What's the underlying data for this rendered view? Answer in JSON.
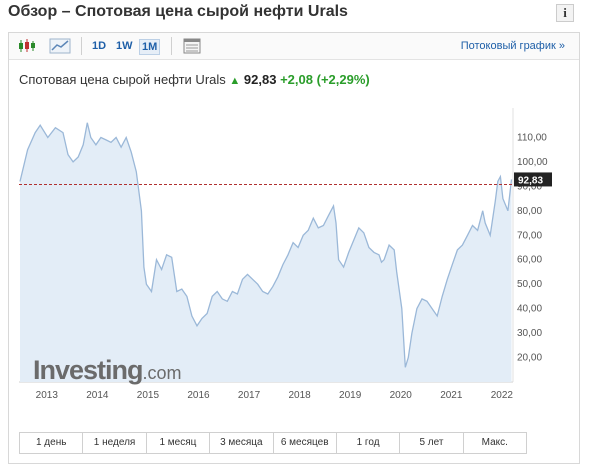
{
  "title": "Обзор – Спотовая цена сырой нефти Urals",
  "info_icon": "i",
  "toolbar": {
    "timeframes": [
      "1D",
      "1W",
      "1M"
    ],
    "active_timeframe": "1M",
    "stream_link": "Потоковый график",
    "stream_arrow": "»"
  },
  "quote": {
    "name": "Спотовая цена сырой нефти Urals",
    "price": "92,83",
    "change": "+2,08",
    "change_pct": "(+2,29%)"
  },
  "logo": {
    "main": "Investing",
    "suffix": ".com"
  },
  "periods": [
    "1 день",
    "1 неделя",
    "1 месяц",
    "3 месяца",
    "6 месяцев",
    "1 год",
    "5 лет",
    "Макс."
  ],
  "colors": {
    "line": "#9bb8d8",
    "fill": "#e3edf7",
    "price_tag": "#222222",
    "ref_line": "#b03030"
  },
  "chart_data": {
    "type": "area",
    "x_label_years": [
      "2013",
      "2014",
      "2015",
      "2016",
      "2017",
      "2018",
      "2019",
      "2020",
      "2021",
      "2022"
    ],
    "y_ticks": [
      "110,00",
      "100,00",
      "90,00",
      "80,00",
      "70,00",
      "60,00",
      "50,00",
      "40,00",
      "30,00",
      "20,00"
    ],
    "ylim": [
      10,
      120
    ],
    "last_price_label": "92,83",
    "reference_value": 90.75,
    "series": [
      {
        "values": [
          [
            2012.6,
            92
          ],
          [
            2012.75,
            105
          ],
          [
            2012.9,
            112
          ],
          [
            2013.0,
            115
          ],
          [
            2013.15,
            110
          ],
          [
            2013.3,
            114
          ],
          [
            2013.45,
            112
          ],
          [
            2013.55,
            103
          ],
          [
            2013.65,
            100
          ],
          [
            2013.75,
            102
          ],
          [
            2013.85,
            107
          ],
          [
            2013.93,
            116
          ],
          [
            2014.0,
            110
          ],
          [
            2014.1,
            107
          ],
          [
            2014.2,
            110
          ],
          [
            2014.3,
            109
          ],
          [
            2014.4,
            108
          ],
          [
            2014.5,
            110
          ],
          [
            2014.6,
            106
          ],
          [
            2014.7,
            110
          ],
          [
            2014.8,
            104
          ],
          [
            2014.9,
            96
          ],
          [
            2015.0,
            80
          ],
          [
            2015.05,
            57
          ],
          [
            2015.1,
            50
          ],
          [
            2015.2,
            47
          ],
          [
            2015.3,
            60
          ],
          [
            2015.4,
            56
          ],
          [
            2015.5,
            62
          ],
          [
            2015.6,
            61
          ],
          [
            2015.7,
            47
          ],
          [
            2015.8,
            48
          ],
          [
            2015.9,
            45
          ],
          [
            2016.0,
            37
          ],
          [
            2016.1,
            33
          ],
          [
            2016.2,
            36
          ],
          [
            2016.3,
            38
          ],
          [
            2016.4,
            45
          ],
          [
            2016.5,
            47
          ],
          [
            2016.6,
            44
          ],
          [
            2016.7,
            43
          ],
          [
            2016.8,
            47
          ],
          [
            2016.9,
            46
          ],
          [
            2017.0,
            52
          ],
          [
            2017.1,
            54
          ],
          [
            2017.2,
            52
          ],
          [
            2017.3,
            50
          ],
          [
            2017.4,
            47
          ],
          [
            2017.5,
            46
          ],
          [
            2017.6,
            49
          ],
          [
            2017.7,
            53
          ],
          [
            2017.8,
            58
          ],
          [
            2017.9,
            62
          ],
          [
            2018.0,
            67
          ],
          [
            2018.1,
            65
          ],
          [
            2018.2,
            70
          ],
          [
            2018.3,
            72
          ],
          [
            2018.4,
            77
          ],
          [
            2018.5,
            73
          ],
          [
            2018.6,
            74
          ],
          [
            2018.7,
            78
          ],
          [
            2018.8,
            82
          ],
          [
            2018.85,
            75
          ],
          [
            2018.9,
            60
          ],
          [
            2019.0,
            57
          ],
          [
            2019.1,
            63
          ],
          [
            2019.2,
            68
          ],
          [
            2019.3,
            73
          ],
          [
            2019.4,
            71
          ],
          [
            2019.5,
            65
          ],
          [
            2019.6,
            63
          ],
          [
            2019.7,
            62
          ],
          [
            2019.75,
            59
          ],
          [
            2019.8,
            60
          ],
          [
            2019.9,
            66
          ],
          [
            2020.0,
            64
          ],
          [
            2020.05,
            55
          ],
          [
            2020.15,
            40
          ],
          [
            2020.22,
            16
          ],
          [
            2020.28,
            20
          ],
          [
            2020.35,
            30
          ],
          [
            2020.45,
            40
          ],
          [
            2020.55,
            44
          ],
          [
            2020.65,
            43
          ],
          [
            2020.75,
            40
          ],
          [
            2020.85,
            37
          ],
          [
            2020.95,
            45
          ],
          [
            2021.05,
            52
          ],
          [
            2021.15,
            58
          ],
          [
            2021.25,
            64
          ],
          [
            2021.35,
            66
          ],
          [
            2021.45,
            70
          ],
          [
            2021.55,
            74
          ],
          [
            2021.65,
            72
          ],
          [
            2021.75,
            80
          ],
          [
            2021.8,
            75
          ],
          [
            2021.9,
            70
          ],
          [
            2022.0,
            84
          ],
          [
            2022.05,
            92
          ],
          [
            2022.1,
            94
          ],
          [
            2022.15,
            85
          ],
          [
            2022.25,
            80
          ],
          [
            2022.32,
            92.83
          ]
        ]
      }
    ]
  }
}
